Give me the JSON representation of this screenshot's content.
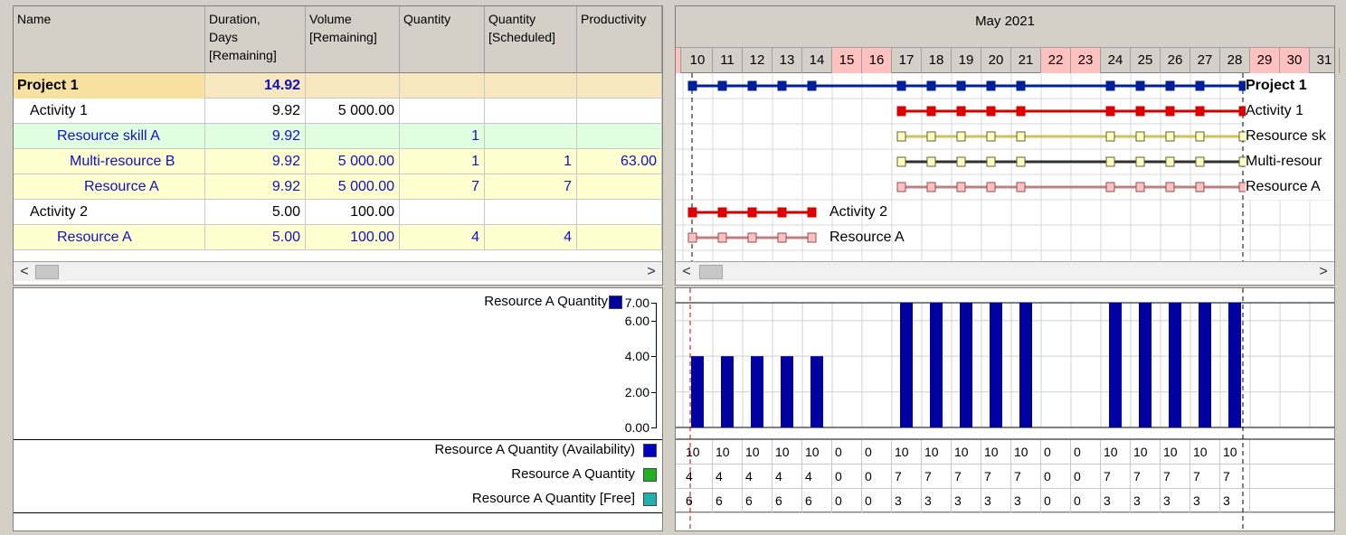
{
  "table": {
    "headers": [
      {
        "label": "Name"
      },
      {
        "label": "Duration,\nDays\n[Remaining]"
      },
      {
        "label": "Volume\n[Remaining]"
      },
      {
        "label": "Quantity"
      },
      {
        "label": "Quantity\n[Scheduled]"
      },
      {
        "label": "Productivity"
      }
    ],
    "rows": [
      {
        "name": "Project 1",
        "duration": "14.92",
        "volume": "",
        "quantity": "",
        "scheduled": "",
        "productivity": ""
      },
      {
        "name": "Activity 1",
        "duration": "9.92",
        "volume": "5 000.00",
        "quantity": "",
        "scheduled": "",
        "productivity": ""
      },
      {
        "name": "Resource skill A",
        "duration": "9.92",
        "volume": "",
        "quantity": "1",
        "scheduled": "",
        "productivity": ""
      },
      {
        "name": "Multi-resource B",
        "duration": "9.92",
        "volume": "5 000.00",
        "quantity": "1",
        "scheduled": "1",
        "productivity": "63.00"
      },
      {
        "name": "Resource A",
        "duration": "9.92",
        "volume": "5 000.00",
        "quantity": "7",
        "scheduled": "7",
        "productivity": ""
      },
      {
        "name": "Activity 2",
        "duration": "5.00",
        "volume": "100.00",
        "quantity": "",
        "scheduled": "",
        "productivity": ""
      },
      {
        "name": "Resource A",
        "duration": "5.00",
        "volume": "100.00",
        "quantity": "4",
        "scheduled": "4",
        "productivity": ""
      }
    ]
  },
  "gantt": {
    "month": "May 2021",
    "days": [
      "10",
      "11",
      "12",
      "13",
      "14",
      "15",
      "16",
      "17",
      "18",
      "19",
      "20",
      "21",
      "22",
      "23",
      "24",
      "25",
      "26",
      "27",
      "28",
      "29",
      "30",
      "31"
    ],
    "weekends": [
      "15",
      "16",
      "22",
      "23",
      "29",
      "30"
    ],
    "bar_labels": [
      "Project 1",
      "Activity 1",
      "Resource sk",
      "Multi-resour",
      "Resource A",
      "Activity 2",
      "Resource A"
    ]
  },
  "scroll": {
    "left": "<",
    "right": ">"
  },
  "chart_legend": {
    "label": "Resource A Quantity",
    "color": "#0000a0"
  },
  "chart_data": {
    "type": "bar",
    "categories": [
      "10",
      "11",
      "12",
      "13",
      "14",
      "15",
      "16",
      "17",
      "18",
      "19",
      "20",
      "21",
      "22",
      "23",
      "24",
      "25",
      "26",
      "27",
      "28"
    ],
    "values": [
      4,
      4,
      4,
      4,
      4,
      0,
      0,
      7,
      7,
      7,
      7,
      7,
      0,
      0,
      7,
      7,
      7,
      7,
      7
    ],
    "yticks": [
      "7.00",
      "6.00",
      "4.00",
      "2.00",
      "0.00"
    ],
    "ylim": [
      0,
      7
    ],
    "grid": true
  },
  "value_rows": [
    {
      "label": "Resource A Quantity (Availability)",
      "color": "#0000c0",
      "values": [
        "10",
        "10",
        "10",
        "10",
        "10",
        "0",
        "0",
        "10",
        "10",
        "10",
        "10",
        "10",
        "0",
        "0",
        "10",
        "10",
        "10",
        "10",
        "10"
      ]
    },
    {
      "label": "Resource A Quantity",
      "color": "#20b020",
      "values": [
        "4",
        "4",
        "4",
        "4",
        "4",
        "0",
        "0",
        "7",
        "7",
        "7",
        "7",
        "7",
        "0",
        "0",
        "7",
        "7",
        "7",
        "7",
        "7"
      ]
    },
    {
      "label": "Resource A Quantity [Free]",
      "color": "#20b0b0",
      "values": [
        "6",
        "6",
        "6",
        "6",
        "6",
        "0",
        "0",
        "3",
        "3",
        "3",
        "3",
        "3",
        "0",
        "0",
        "3",
        "3",
        "3",
        "3",
        "3"
      ]
    }
  ]
}
